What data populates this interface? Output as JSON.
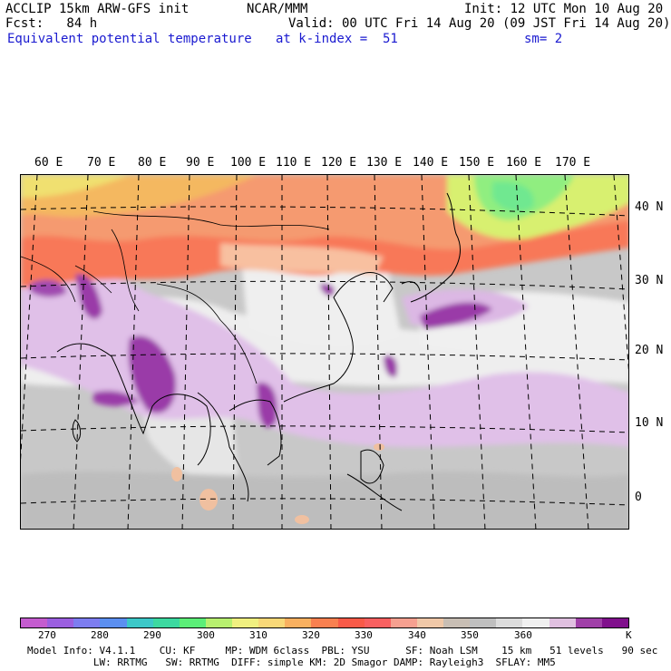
{
  "header": {
    "line1_left": "ACCLIP 15km ARW-GFS init",
    "line1_center": "NCAR/MMM",
    "line1_right": "Init: 12 UTC Mon 10 Aug 20",
    "line2_left": "Fcst:   84 h",
    "line2_right": "Valid: 00 UTC Fri 14 Aug 20 (09 JST Fri 14 Aug 20)",
    "line3_left": "Equivalent potential temperature",
    "line3_center": "at k-index =  51",
    "line3_right": "sm= 2"
  },
  "map": {
    "lon_labels": [
      "60 E",
      "70 E",
      "80 E",
      "90 E",
      "100 E",
      "110 E",
      "120 E",
      "130 E",
      "140 E",
      "150 E",
      "160 E",
      "170 E"
    ],
    "lat_labels": [
      "40 N",
      "30 N",
      "20 N",
      "10 N",
      "0"
    ]
  },
  "colorbar": {
    "colors": [
      "#c45ccf",
      "#9b5fe0",
      "#7d7df0",
      "#5b8ff0",
      "#3cc8c8",
      "#3cd9a0",
      "#5cee78",
      "#b8f070",
      "#f0f080",
      "#f8d878",
      "#f8b060",
      "#f88050",
      "#f85a48",
      "#f86060",
      "#f6a090",
      "#f0c8a8",
      "#c8beb4",
      "#bfbfbf",
      "#dcdcdc",
      "#f0f0f0",
      "#e0c0e0",
      "#a040a8",
      "#80108c"
    ],
    "labels": [
      "270",
      "280",
      "290",
      "300",
      "310",
      "320",
      "330",
      "340",
      "350",
      "360",
      "K"
    ],
    "unit": "K"
  },
  "footer": {
    "line1": "Model Info: V4.1.1    CU: KF     MP: WDM 6class  PBL: YSU      SF: Noah LSM    15 km   51 levels   90 sec",
    "line2": "           LW: RRTMG   SW: RRTMG  DIFF: simple KM: 2D Smagor DAMP: Rayleigh3  SFLAY: MM5"
  }
}
